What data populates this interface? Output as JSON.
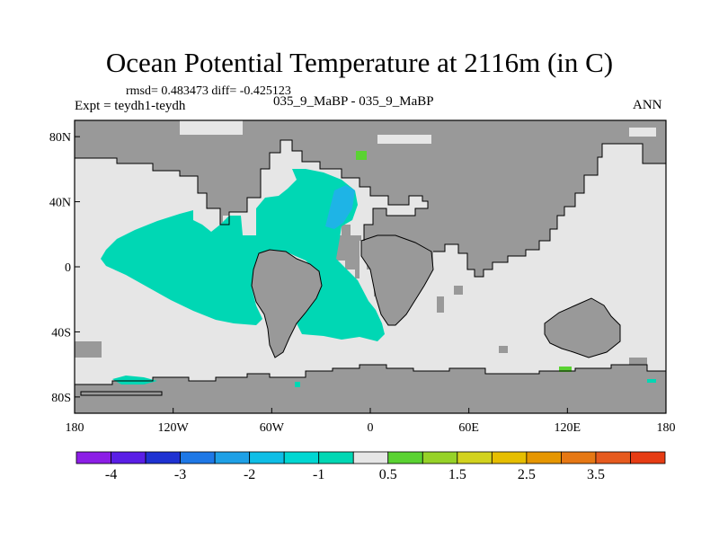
{
  "title": "Ocean Potential Temperature at 2116m (in C)",
  "stats": "rmsd= 0.483473 diff= -0.425123",
  "experiment": "Expt = teydh1-teydh",
  "subtitle": "035_9_MaBP - 035_9_MaBP",
  "season": "ANN",
  "map": {
    "lon_range": [
      -180,
      180
    ],
    "lat_range": [
      -90,
      90
    ],
    "x_ticks": [
      {
        "lon": -180,
        "label": "180"
      },
      {
        "lon": -120,
        "label": "120W"
      },
      {
        "lon": -60,
        "label": "60W"
      },
      {
        "lon": 0,
        "label": "0"
      },
      {
        "lon": 60,
        "label": "60E"
      },
      {
        "lon": 120,
        "label": "120E"
      },
      {
        "lon": 180,
        "label": "180"
      }
    ],
    "y_ticks": [
      {
        "lat": 80,
        "label": "80N"
      },
      {
        "lat": 40,
        "label": "40N"
      },
      {
        "lat": 0,
        "label": "0"
      },
      {
        "lat": -40,
        "label": "40S"
      },
      {
        "lat": -80,
        "label": "80S"
      }
    ],
    "colors": {
      "land": "#999999",
      "ocean_background": "#e6e6e6",
      "cyan_band": "#00d7b4",
      "blue_band": "#1eb4e6",
      "green_band": "#5ad232",
      "outline": "#000000"
    }
  },
  "colorbar": {
    "colors": [
      "#8c1ee6",
      "#5a1ee6",
      "#1e32d2",
      "#1e78e6",
      "#1ea0e6",
      "#0fbee6",
      "#00d7d2",
      "#00d7b4",
      "#e6e6e6",
      "#5ad232",
      "#96d228",
      "#d2d21e",
      "#e6be00",
      "#e69600",
      "#e67814",
      "#e65a1e",
      "#e63c14"
    ],
    "labels": [
      {
        "boundary": 1,
        "text": "-4"
      },
      {
        "boundary": 3,
        "text": "-3"
      },
      {
        "boundary": 5,
        "text": "-2"
      },
      {
        "boundary": 7,
        "text": "-1"
      },
      {
        "boundary": 9,
        "text": "0.5"
      },
      {
        "boundary": 11,
        "text": "1.5"
      },
      {
        "boundary": 13,
        "text": "2.5"
      },
      {
        "boundary": 15,
        "text": "3.5"
      }
    ]
  }
}
